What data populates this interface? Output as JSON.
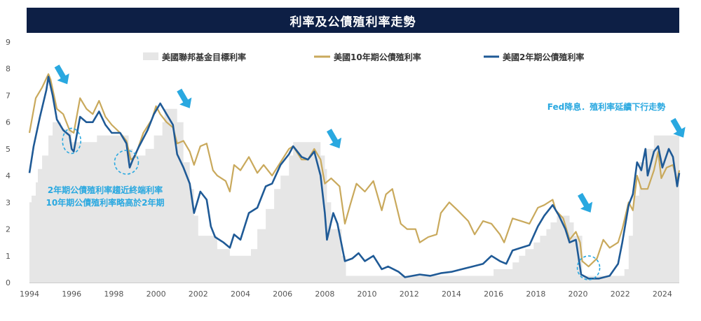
{
  "chart_data": {
    "type": "line",
    "title": "利率及公債殖利率走勢",
    "xlabel": "",
    "ylabel": "",
    "ylim": [
      0,
      9
    ],
    "xlim": [
      1994,
      2024.8
    ],
    "x_ticks": [
      "1994",
      "1996",
      "1998",
      "2000",
      "2002",
      "2004",
      "2006",
      "2008",
      "2010",
      "2012",
      "2014",
      "2016",
      "2018",
      "2020",
      "2022",
      "2024"
    ],
    "y_ticks": [
      "0",
      "1",
      "2",
      "3",
      "4",
      "5",
      "6",
      "7",
      "8",
      "9"
    ],
    "grid": false,
    "legend_position": "top",
    "series": [
      {
        "name": "美國聯邦基金目標利率",
        "type": "area",
        "color": "#e6e6e6",
        "points": [
          [
            1994.0,
            3.0
          ],
          [
            1994.1,
            3.25
          ],
          [
            1994.3,
            3.75
          ],
          [
            1994.4,
            4.25
          ],
          [
            1994.6,
            4.75
          ],
          [
            1994.9,
            5.5
          ],
          [
            1995.1,
            6.0
          ],
          [
            1995.5,
            5.75
          ],
          [
            1996.0,
            5.25
          ],
          [
            1997.2,
            5.5
          ],
          [
            1998.7,
            5.0
          ],
          [
            1998.9,
            4.75
          ],
          [
            1999.5,
            5.0
          ],
          [
            1999.9,
            5.5
          ],
          [
            2000.3,
            6.0
          ],
          [
            2000.4,
            6.5
          ],
          [
            2001.0,
            6.0
          ],
          [
            2001.3,
            4.5
          ],
          [
            2001.6,
            3.5
          ],
          [
            2001.8,
            2.5
          ],
          [
            2002.0,
            1.75
          ],
          [
            2002.9,
            1.25
          ],
          [
            2003.5,
            1.0
          ],
          [
            2004.5,
            1.25
          ],
          [
            2004.8,
            2.0
          ],
          [
            2005.2,
            2.75
          ],
          [
            2005.6,
            3.5
          ],
          [
            2005.9,
            4.0
          ],
          [
            2006.3,
            4.75
          ],
          [
            2006.5,
            5.25
          ],
          [
            2007.6,
            5.25
          ],
          [
            2007.8,
            4.75
          ],
          [
            2008.0,
            4.25
          ],
          [
            2008.1,
            3.0
          ],
          [
            2008.3,
            2.0
          ],
          [
            2008.8,
            1.0
          ],
          [
            2009.0,
            0.25
          ],
          [
            2015.9,
            0.25
          ],
          [
            2016.0,
            0.5
          ],
          [
            2016.9,
            0.75
          ],
          [
            2017.2,
            1.0
          ],
          [
            2017.5,
            1.25
          ],
          [
            2017.9,
            1.5
          ],
          [
            2018.2,
            1.75
          ],
          [
            2018.5,
            2.0
          ],
          [
            2018.7,
            2.25
          ],
          [
            2019.0,
            2.5
          ],
          [
            2019.5,
            2.5
          ],
          [
            2019.6,
            2.25
          ],
          [
            2019.8,
            1.75
          ],
          [
            2020.2,
            0.25
          ],
          [
            2022.2,
            0.5
          ],
          [
            2022.4,
            1.75
          ],
          [
            2022.6,
            3.25
          ],
          [
            2022.9,
            4.5
          ],
          [
            2023.2,
            5.0
          ],
          [
            2023.6,
            5.5
          ],
          [
            2024.7,
            5.5
          ],
          [
            2024.8,
            5.0
          ]
        ]
      },
      {
        "name": "美國10年期公債殖利率",
        "type": "line",
        "color": "#c9a95c",
        "points": [
          [
            1994.0,
            5.6
          ],
          [
            1994.3,
            6.9
          ],
          [
            1994.6,
            7.3
          ],
          [
            1994.9,
            7.8
          ],
          [
            1995.0,
            7.6
          ],
          [
            1995.3,
            6.5
          ],
          [
            1995.6,
            6.3
          ],
          [
            1995.9,
            5.7
          ],
          [
            1996.1,
            5.6
          ],
          [
            1996.4,
            6.9
          ],
          [
            1996.7,
            6.5
          ],
          [
            1997.0,
            6.3
          ],
          [
            1997.3,
            6.8
          ],
          [
            1997.6,
            6.2
          ],
          [
            1997.9,
            5.9
          ],
          [
            1998.3,
            5.6
          ],
          [
            1998.6,
            5.3
          ],
          [
            1998.8,
            4.6
          ],
          [
            1999.0,
            4.7
          ],
          [
            1999.4,
            5.6
          ],
          [
            1999.8,
            6.1
          ],
          [
            2000.0,
            6.6
          ],
          [
            2000.2,
            6.3
          ],
          [
            2000.5,
            6.0
          ],
          [
            2000.8,
            5.8
          ],
          [
            2001.0,
            5.2
          ],
          [
            2001.3,
            5.3
          ],
          [
            2001.6,
            4.9
          ],
          [
            2001.8,
            4.4
          ],
          [
            2002.1,
            5.1
          ],
          [
            2002.4,
            5.2
          ],
          [
            2002.7,
            4.2
          ],
          [
            2002.9,
            4.0
          ],
          [
            2003.3,
            3.8
          ],
          [
            2003.5,
            3.4
          ],
          [
            2003.7,
            4.4
          ],
          [
            2004.0,
            4.2
          ],
          [
            2004.4,
            4.7
          ],
          [
            2004.8,
            4.1
          ],
          [
            2005.1,
            4.4
          ],
          [
            2005.5,
            4.0
          ],
          [
            2005.9,
            4.5
          ],
          [
            2006.3,
            5.0
          ],
          [
            2006.5,
            5.1
          ],
          [
            2006.9,
            4.6
          ],
          [
            2007.2,
            4.6
          ],
          [
            2007.5,
            5.0
          ],
          [
            2007.8,
            4.6
          ],
          [
            2008.0,
            3.7
          ],
          [
            2008.3,
            3.9
          ],
          [
            2008.7,
            3.6
          ],
          [
            2008.95,
            2.2
          ],
          [
            2009.2,
            2.9
          ],
          [
            2009.5,
            3.7
          ],
          [
            2009.9,
            3.4
          ],
          [
            2010.3,
            3.8
          ],
          [
            2010.7,
            2.7
          ],
          [
            2010.9,
            3.3
          ],
          [
            2011.2,
            3.5
          ],
          [
            2011.6,
            2.2
          ],
          [
            2011.9,
            2.0
          ],
          [
            2012.3,
            2.0
          ],
          [
            2012.5,
            1.5
          ],
          [
            2012.9,
            1.7
          ],
          [
            2013.3,
            1.8
          ],
          [
            2013.5,
            2.6
          ],
          [
            2013.9,
            3.0
          ],
          [
            2014.3,
            2.7
          ],
          [
            2014.8,
            2.3
          ],
          [
            2015.1,
            1.8
          ],
          [
            2015.5,
            2.3
          ],
          [
            2015.9,
            2.2
          ],
          [
            2016.3,
            1.8
          ],
          [
            2016.5,
            1.5
          ],
          [
            2016.9,
            2.4
          ],
          [
            2017.3,
            2.3
          ],
          [
            2017.7,
            2.2
          ],
          [
            2018.1,
            2.8
          ],
          [
            2018.4,
            2.9
          ],
          [
            2018.8,
            3.1
          ],
          [
            2018.95,
            2.7
          ],
          [
            2019.3,
            2.4
          ],
          [
            2019.6,
            1.6
          ],
          [
            2019.9,
            1.9
          ],
          [
            2020.1,
            1.5
          ],
          [
            2020.2,
            0.8
          ],
          [
            2020.5,
            0.6
          ],
          [
            2020.9,
            0.9
          ],
          [
            2021.2,
            1.6
          ],
          [
            2021.5,
            1.3
          ],
          [
            2021.9,
            1.5
          ],
          [
            2022.1,
            2.0
          ],
          [
            2022.4,
            3.0
          ],
          [
            2022.6,
            2.7
          ],
          [
            2022.8,
            4.0
          ],
          [
            2023.0,
            3.5
          ],
          [
            2023.3,
            3.5
          ],
          [
            2023.6,
            4.2
          ],
          [
            2023.8,
            4.9
          ],
          [
            2023.95,
            3.9
          ],
          [
            2024.2,
            4.3
          ],
          [
            2024.5,
            4.4
          ],
          [
            2024.7,
            3.8
          ],
          [
            2024.8,
            4.2
          ]
        ]
      },
      {
        "name": "美國2年期公債殖利率",
        "type": "line",
        "color": "#1f5a96",
        "points": [
          [
            1994.0,
            4.1
          ],
          [
            1994.2,
            5.1
          ],
          [
            1994.5,
            6.2
          ],
          [
            1994.8,
            7.2
          ],
          [
            1994.9,
            7.7
          ],
          [
            1995.1,
            7.0
          ],
          [
            1995.3,
            6.1
          ],
          [
            1995.6,
            5.7
          ],
          [
            1995.9,
            5.5
          ],
          [
            1996.0,
            5.0
          ],
          [
            1996.1,
            4.9
          ],
          [
            1996.4,
            6.2
          ],
          [
            1996.7,
            6.0
          ],
          [
            1997.0,
            6.0
          ],
          [
            1997.3,
            6.4
          ],
          [
            1997.6,
            5.9
          ],
          [
            1997.9,
            5.6
          ],
          [
            1998.3,
            5.6
          ],
          [
            1998.6,
            5.2
          ],
          [
            1998.75,
            4.3
          ],
          [
            1998.9,
            4.6
          ],
          [
            1999.2,
            5.1
          ],
          [
            1999.6,
            5.7
          ],
          [
            1999.9,
            6.3
          ],
          [
            2000.2,
            6.7
          ],
          [
            2000.5,
            6.3
          ],
          [
            2000.8,
            5.9
          ],
          [
            2001.0,
            4.8
          ],
          [
            2001.3,
            4.3
          ],
          [
            2001.6,
            3.7
          ],
          [
            2001.8,
            2.6
          ],
          [
            2002.1,
            3.4
          ],
          [
            2002.4,
            3.1
          ],
          [
            2002.6,
            2.1
          ],
          [
            2002.8,
            1.7
          ],
          [
            2003.2,
            1.5
          ],
          [
            2003.5,
            1.3
          ],
          [
            2003.7,
            1.8
          ],
          [
            2004.0,
            1.6
          ],
          [
            2004.4,
            2.6
          ],
          [
            2004.8,
            2.8
          ],
          [
            2005.2,
            3.6
          ],
          [
            2005.5,
            3.7
          ],
          [
            2005.9,
            4.4
          ],
          [
            2006.3,
            4.8
          ],
          [
            2006.5,
            5.1
          ],
          [
            2006.9,
            4.7
          ],
          [
            2007.2,
            4.6
          ],
          [
            2007.5,
            4.9
          ],
          [
            2007.8,
            4.0
          ],
          [
            2008.0,
            2.6
          ],
          [
            2008.1,
            1.6
          ],
          [
            2008.4,
            2.6
          ],
          [
            2008.6,
            2.2
          ],
          [
            2008.95,
            0.8
          ],
          [
            2009.3,
            0.9
          ],
          [
            2009.6,
            1.1
          ],
          [
            2009.9,
            0.8
          ],
          [
            2010.3,
            1.0
          ],
          [
            2010.7,
            0.5
          ],
          [
            2011.0,
            0.6
          ],
          [
            2011.5,
            0.4
          ],
          [
            2011.8,
            0.2
          ],
          [
            2012.5,
            0.3
          ],
          [
            2013.0,
            0.25
          ],
          [
            2013.5,
            0.35
          ],
          [
            2014.0,
            0.4
          ],
          [
            2014.5,
            0.5
          ],
          [
            2015.0,
            0.6
          ],
          [
            2015.5,
            0.7
          ],
          [
            2015.9,
            1.0
          ],
          [
            2016.3,
            0.8
          ],
          [
            2016.6,
            0.7
          ],
          [
            2016.9,
            1.2
          ],
          [
            2017.3,
            1.3
          ],
          [
            2017.7,
            1.4
          ],
          [
            2018.1,
            2.1
          ],
          [
            2018.4,
            2.5
          ],
          [
            2018.8,
            2.9
          ],
          [
            2019.1,
            2.5
          ],
          [
            2019.4,
            2.0
          ],
          [
            2019.6,
            1.5
          ],
          [
            2019.9,
            1.6
          ],
          [
            2020.15,
            0.3
          ],
          [
            2020.5,
            0.15
          ],
          [
            2021.0,
            0.15
          ],
          [
            2021.5,
            0.25
          ],
          [
            2021.9,
            0.7
          ],
          [
            2022.1,
            1.5
          ],
          [
            2022.4,
            2.9
          ],
          [
            2022.6,
            3.3
          ],
          [
            2022.8,
            4.5
          ],
          [
            2023.0,
            4.2
          ],
          [
            2023.2,
            5.0
          ],
          [
            2023.3,
            4.0
          ],
          [
            2023.6,
            4.9
          ],
          [
            2023.8,
            5.1
          ],
          [
            2024.0,
            4.3
          ],
          [
            2024.3,
            5.0
          ],
          [
            2024.5,
            4.7
          ],
          [
            2024.7,
            3.6
          ],
          [
            2024.8,
            4.1
          ]
        ]
      }
    ],
    "annotations": [
      {
        "text": "2年期公債殖利率趨近終端利率",
        "color": "#29a8e0"
      },
      {
        "text": "10年期公債殖利率略高於2年期",
        "color": "#29a8e0"
      },
      {
        "text": "Fed降息．殖利率延續下行走勢",
        "color": "#29a8e0"
      }
    ],
    "arrow_color": "#29a8e0"
  }
}
